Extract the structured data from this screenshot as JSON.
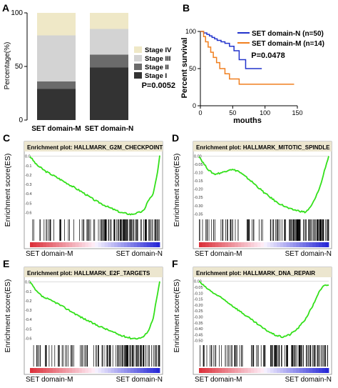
{
  "panels": {
    "A": {
      "letter": "A",
      "chart_data": {
        "type": "bar",
        "stacked": true,
        "categories": [
          "SET domain-M",
          "SET domain-N"
        ],
        "series": [
          {
            "name": "Stage I",
            "color": "#333333",
            "values": [
              29,
              49
            ]
          },
          {
            "name": "Stage II",
            "color": "#6b6b6b",
            "values": [
              7,
              12
            ]
          },
          {
            "name": "Stage III",
            "color": "#d3d3d3",
            "values": [
              43,
              24
            ]
          },
          {
            "name": "Stage IV",
            "color": "#efe8c7",
            "values": [
              21,
              15
            ]
          }
        ],
        "ylabel": "Percentage(%)",
        "ylim": [
          0,
          100
        ],
        "yticks": [
          "0",
          "50",
          "100"
        ],
        "legend": [
          "Stage IV",
          "Stage III",
          "Stage II",
          "Stage I"
        ],
        "pvalue": "P=0.0052"
      }
    },
    "B": {
      "letter": "B",
      "chart_data": {
        "type": "line",
        "step": true,
        "series": [
          {
            "name": "SET domain-N (n=50)",
            "color": "#2233cc",
            "x": [
              0,
              5,
              10,
              14,
              18,
              22,
              26,
              32,
              38,
              45,
              52,
              60,
              70,
              95
            ],
            "y": [
              100,
              98,
              96,
              94,
              92,
              90,
              88,
              86,
              84,
              80,
              74,
              62,
              50,
              50
            ]
          },
          {
            "name": "SET domain-M (n=14)",
            "color": "#f07f1f",
            "x": [
              0,
              5,
              8,
              12,
              16,
              20,
              25,
              30,
              38,
              45,
              60,
              70,
              145
            ],
            "y": [
              100,
              93,
              86,
              79,
              72,
              65,
              58,
              50,
              43,
              36,
              29,
              29,
              29
            ]
          }
        ],
        "xlabel": "mouths",
        "ylabel": "Percent survival",
        "xlim": [
          0,
          150
        ],
        "ylim": [
          0,
          100
        ],
        "xticks": [
          "0",
          "50",
          "100",
          "150"
        ],
        "yticks": [
          "0",
          "50",
          "100"
        ],
        "pvalue": "P=0.0478"
      }
    },
    "C": {
      "letter": "C",
      "title": "Enrichment plot: HALLMARK_G2M_CHECKPOINT",
      "yticks": [
        "0.0",
        "-0.1",
        "-0.2",
        "-0.3",
        "-0.4",
        "-0.5",
        "-0.6"
      ],
      "ylim": [
        -0.65,
        0.02
      ],
      "ylabel": "Enrichment score(ES)",
      "left_label": "SET domain-M",
      "right_label": "SET domain-N",
      "chart_data": {
        "type": "line",
        "x": [
          0,
          0.05,
          0.12,
          0.2,
          0.3,
          0.4,
          0.5,
          0.6,
          0.7,
          0.78,
          0.84,
          0.88,
          0.9,
          0.95,
          0.98,
          1.0
        ],
        "y": [
          0,
          -0.09,
          -0.16,
          -0.22,
          -0.3,
          -0.38,
          -0.47,
          -0.54,
          -0.6,
          -0.62,
          -0.6,
          -0.58,
          -0.5,
          -0.4,
          -0.2,
          0
        ]
      }
    },
    "D": {
      "letter": "D",
      "title": "Enrichment plot: HALLMARK_MITOTIC_SPINDLE",
      "yticks": [
        "0.00",
        "-0.05",
        "-0.10",
        "-0.15",
        "-0.20",
        "-0.25",
        "-0.30",
        "-0.35"
      ],
      "ylim": [
        -0.37,
        0.01
      ],
      "ylabel": "Enrichment score(ES)",
      "left_label": "SET domain-M",
      "right_label": "SET domain-N",
      "chart_data": {
        "type": "line",
        "x": [
          0,
          0.04,
          0.08,
          0.12,
          0.18,
          0.24,
          0.3,
          0.4,
          0.5,
          0.6,
          0.7,
          0.76,
          0.82,
          0.86,
          0.9,
          0.94,
          0.97,
          1.0
        ],
        "y": [
          0,
          -0.05,
          -0.09,
          -0.11,
          -0.1,
          -0.08,
          -0.09,
          -0.15,
          -0.22,
          -0.28,
          -0.32,
          -0.33,
          -0.34,
          -0.31,
          -0.25,
          -0.17,
          -0.08,
          0
        ]
      }
    },
    "E": {
      "letter": "E",
      "title": "Enrichment plot: HALLMARK_E2F_TARGETS",
      "yticks": [
        "0.0",
        "-0.1",
        "-0.2",
        "-0.3",
        "-0.4",
        "-0.5",
        "-0.6"
      ],
      "ylim": [
        -0.65,
        0.02
      ],
      "ylabel": "Enrichment score(ES)",
      "left_label": "SET domain-M",
      "right_label": "SET domain-N",
      "chart_data": {
        "type": "line",
        "x": [
          0,
          0.05,
          0.1,
          0.2,
          0.3,
          0.4,
          0.5,
          0.6,
          0.7,
          0.78,
          0.84,
          0.88,
          0.92,
          0.95,
          0.98,
          1.0
        ],
        "y": [
          0,
          -0.1,
          -0.16,
          -0.22,
          -0.3,
          -0.38,
          -0.45,
          -0.51,
          -0.57,
          -0.6,
          -0.6,
          -0.58,
          -0.5,
          -0.38,
          -0.15,
          0
        ]
      }
    },
    "F": {
      "letter": "F",
      "title": "Enrichment plot: HALLMARK_DNA_REPAIR",
      "yticks": [
        "0.00",
        "-0.05",
        "-0.10",
        "-0.15",
        "-0.20",
        "-0.25",
        "-0.30",
        "-0.35",
        "-0.40",
        "-0.45",
        "-0.50"
      ],
      "ylim": [
        -0.52,
        0.01
      ],
      "ylabel": "Enrichment score(ES)",
      "left_label": "SET domain-M",
      "right_label": "SET domain-N",
      "chart_data": {
        "type": "line",
        "x": [
          0,
          0.05,
          0.1,
          0.2,
          0.3,
          0.4,
          0.5,
          0.58,
          0.64,
          0.7,
          0.76,
          0.82,
          0.88,
          0.92,
          0.96,
          1.0
        ],
        "y": [
          0,
          -0.05,
          -0.09,
          -0.16,
          -0.24,
          -0.32,
          -0.4,
          -0.45,
          -0.47,
          -0.45,
          -0.4,
          -0.32,
          -0.2,
          -0.1,
          -0.04,
          -0.03
        ]
      }
    }
  }
}
